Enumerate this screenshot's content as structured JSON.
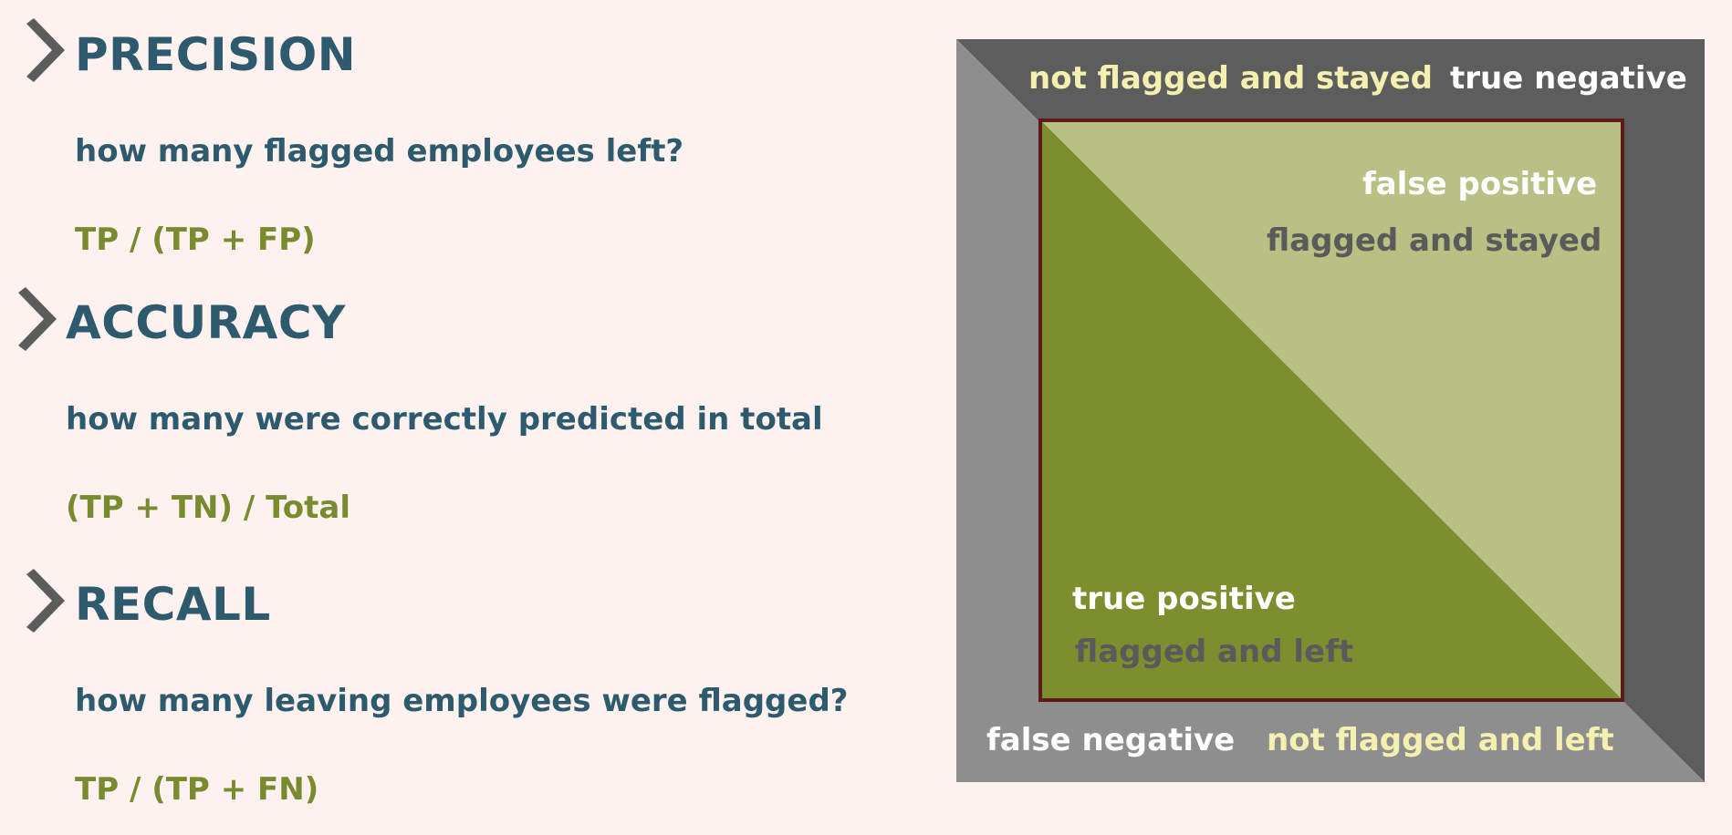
{
  "sections": [
    {
      "heading": "PRECISION",
      "question": "how many flagged employees left?",
      "formula": "TP / (TP + FP)"
    },
    {
      "heading": "ACCURACY",
      "question": "how many were correctly predicted in total",
      "formula": "(TP + TN) / Total"
    },
    {
      "heading": "RECALL",
      "question": "how many leaving employees were flagged?",
      "formula": "TP / (TP + FN)"
    }
  ],
  "matrix": {
    "tn_description": "not flagged and stayed",
    "tn_term": "true negative",
    "fp_term": "false positive",
    "fp_description": "flagged and stayed",
    "tp_term": "true positive",
    "tp_description": "flagged and left",
    "fn_term": "false negative",
    "fn_description": "not flagged and left"
  },
  "colors": {
    "background": "#fdf2ef",
    "heading": "#2e5a6e",
    "formula": "#7a8a2e",
    "chevron": "#5c5c5c",
    "frame_dark": "#5d5d5d",
    "frame_light": "#8e8e8e",
    "inner_border": "#5c1a1a",
    "true_positive_fill": "#7d8e2e",
    "false_positive_fill": "#b8c084",
    "label_cream": "#f4f0b0",
    "label_white": "#ffffff",
    "label_gray": "#5a5a5a"
  },
  "icons": {
    "section_marker": "chevron-right-icon"
  }
}
